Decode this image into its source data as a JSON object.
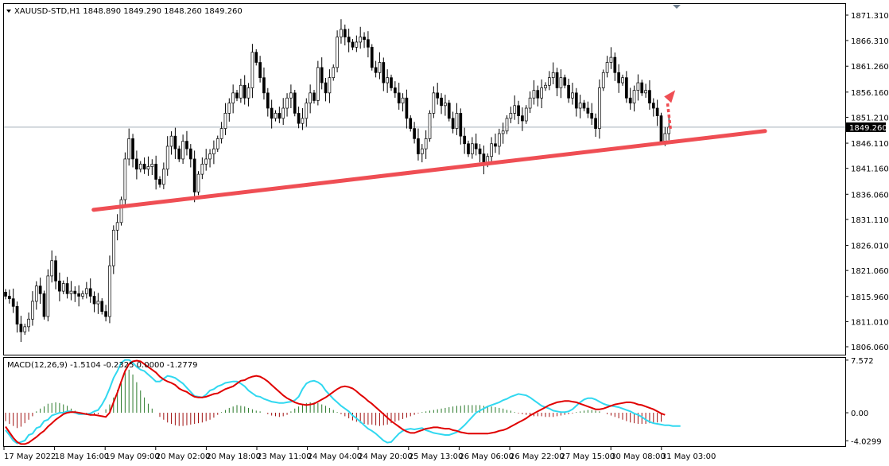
{
  "header": {
    "symbol_line": "XAUUSD-STD,H1  1848.890 1849.290 1848.260 1849.260",
    "macd_line": "MACD(12,26,9) -1.5104 -0.2325 0.0000 -1.2779"
  },
  "colors": {
    "bull": "#ffffff",
    "bear": "#000000",
    "wick": "#000000",
    "trendline": "#ef4e54",
    "arrow": "#ef4e54",
    "macd_main": "#e00000",
    "macd_signal": "#30d8f0",
    "hist_pos": "#2a7a2a",
    "hist_neg": "#a01010",
    "price_line": "#708090"
  },
  "current_price_label": "1849.260",
  "chart_data": {
    "type": "candlestick",
    "symbol": "XAUUSD-STD",
    "timeframe": "H1",
    "price_axis": {
      "range": [
        1804.5,
        1873.5
      ],
      "ticks": [
        "1871.310",
        "1866.310",
        "1861.260",
        "1856.160",
        "1851.210",
        "1846.110",
        "1841.160",
        "1836.060",
        "1831.110",
        "1826.010",
        "1821.060",
        "1815.960",
        "1811.010",
        "1806.060"
      ]
    },
    "current_price": 1849.26,
    "time_axis": {
      "labels": [
        "17 May 2022",
        "18 May 16:00",
        "19 May 09:00",
        "20 May 02:00",
        "20 May 18:00",
        "23 May 11:00",
        "24 May 04:00",
        "24 May 20:00",
        "25 May 13:00",
        "26 May 06:00",
        "26 May 22:00",
        "27 May 15:00",
        "30 May 08:00",
        "31 May 03:00"
      ]
    },
    "trendline": {
      "from": [
        22,
        1833.0
      ],
      "to": [
        166,
        1848.5
      ]
    },
    "arrow_target": [
      172,
      1855.6
    ],
    "closes": [
      1816.0,
      1815.5,
      1814.0,
      1810.5,
      1809.0,
      1810.0,
      1811.5,
      1815.0,
      1818.0,
      1816.5,
      1812.0,
      1820.0,
      1823.0,
      1819.0,
      1817.0,
      1818.5,
      1816.5,
      1817.0,
      1816.5,
      1816.0,
      1816.5,
      1817.5,
      1816.0,
      1814.5,
      1815.0,
      1813.0,
      1812.0,
      1822.0,
      1829.0,
      1830.5,
      1835.0,
      1843.0,
      1847.0,
      1843.0,
      1841.0,
      1842.0,
      1841.0,
      1841.5,
      1842.0,
      1839.0,
      1838.0,
      1841.0,
      1845.5,
      1847.5,
      1845.0,
      1843.0,
      1846.5,
      1845.0,
      1843.0,
      1836.5,
      1840.0,
      1842.0,
      1843.0,
      1844.0,
      1845.0,
      1847.0,
      1849.0,
      1852.0,
      1854.0,
      1856.0,
      1855.0,
      1857.5,
      1855.0,
      1857.0,
      1864.0,
      1862.0,
      1859.0,
      1856.0,
      1853.0,
      1851.0,
      1852.0,
      1851.0,
      1853.0,
      1855.0,
      1856.0,
      1852.0,
      1850.0,
      1851.0,
      1854.0,
      1856.0,
      1854.5,
      1861.0,
      1858.0,
      1856.0,
      1859.0,
      1861.0,
      1867.0,
      1868.5,
      1867.0,
      1866.0,
      1865.0,
      1866.0,
      1867.0,
      1866.5,
      1865.0,
      1861.0,
      1860.0,
      1862.0,
      1858.0,
      1859.0,
      1857.0,
      1856.0,
      1854.0,
      1855.0,
      1851.0,
      1849.0,
      1847.0,
      1844.0,
      1845.0,
      1847.0,
      1852.0,
      1856.0,
      1855.0,
      1853.5,
      1854.0,
      1851.0,
      1849.0,
      1852.0,
      1847.5,
      1846.0,
      1844.0,
      1846.0,
      1845.0,
      1844.0,
      1842.0,
      1843.5,
      1846.0,
      1845.5,
      1848.0,
      1848.5,
      1851.0,
      1852.0,
      1853.5,
      1851.5,
      1850.5,
      1853.0,
      1855.0,
      1856.5,
      1855.0,
      1857.0,
      1857.5,
      1859.0,
      1860.0,
      1857.0,
      1859.0,
      1857.5,
      1855.0,
      1856.0,
      1853.0,
      1854.0,
      1853.0,
      1852.0,
      1851.0,
      1849.0,
      1857.0,
      1860.0,
      1862.0,
      1863.0,
      1860.0,
      1858.0,
      1859.0,
      1855.0,
      1854.0,
      1856.5,
      1858.0,
      1856.0,
      1856.5,
      1854.0,
      1853.0,
      1851.5,
      1846.5,
      1848.0,
      1849.26
    ],
    "macd_axis": {
      "range": [
        -4.8,
        7.9
      ],
      "ticks": [
        "7.572",
        "0.00",
        "-4.0299"
      ]
    },
    "macd": {
      "main": [
        -2.0,
        -2.8,
        -3.6,
        -4.2,
        -4.5,
        -4.5,
        -4.3,
        -3.9,
        -3.5,
        -3.0,
        -2.6,
        -2.0,
        -1.5,
        -1.0,
        -0.6,
        -0.2,
        0.0,
        0.1,
        0.1,
        0.0,
        -0.1,
        -0.2,
        -0.3,
        -0.3,
        -0.4,
        -0.5,
        -0.6,
        0.0,
        1.5,
        2.9,
        4.5,
        6.0,
        7.0,
        7.4,
        7.5,
        7.4,
        7.0,
        6.6,
        6.2,
        5.8,
        5.2,
        4.8,
        4.5,
        4.3,
        4.0,
        3.5,
        3.2,
        3.0,
        2.6,
        2.3,
        2.2,
        2.2,
        2.3,
        2.5,
        2.7,
        2.8,
        3.1,
        3.4,
        3.6,
        3.8,
        4.2,
        4.6,
        4.7,
        5.0,
        5.2,
        5.3,
        5.2,
        4.9,
        4.5,
        4.0,
        3.5,
        3.0,
        2.5,
        2.1,
        1.8,
        1.5,
        1.3,
        1.2,
        1.1,
        1.2,
        1.3,
        1.6,
        1.9,
        2.2,
        2.6,
        3.0,
        3.4,
        3.7,
        3.8,
        3.7,
        3.5,
        3.1,
        2.6,
        2.2,
        1.7,
        1.3,
        0.8,
        0.3,
        -0.2,
        -0.7,
        -1.2,
        -1.6,
        -2.0,
        -2.4,
        -2.7,
        -2.9,
        -2.9,
        -2.7,
        -2.5,
        -2.3,
        -2.2,
        -2.1,
        -2.1,
        -2.2,
        -2.3,
        -2.3,
        -2.5,
        -2.6,
        -2.8,
        -2.9,
        -3.0,
        -3.0,
        -3.0,
        -3.0,
        -3.0,
        -3.0,
        -2.9,
        -2.8,
        -2.6,
        -2.5,
        -2.3,
        -2.0,
        -1.7,
        -1.4,
        -1.1,
        -0.8,
        -0.4,
        -0.1,
        0.2,
        0.5,
        0.8,
        1.1,
        1.3,
        1.5,
        1.6,
        1.7,
        1.7,
        1.6,
        1.5,
        1.3,
        1.1,
        0.9,
        0.7,
        0.5,
        0.5,
        0.6,
        0.8,
        1.0,
        1.2,
        1.3,
        1.4,
        1.5,
        1.5,
        1.4,
        1.2,
        1.1,
        0.9,
        0.7,
        0.5,
        0.2,
        -0.1,
        -0.3
      ],
      "signal": [
        -2.5,
        -3.2,
        -4.0,
        -4.4,
        -4.2,
        -4.0,
        -3.2,
        -3.0,
        -2.2,
        -2.0,
        -1.2,
        -1.0,
        -0.4,
        -0.2,
        0.0,
        0.0,
        0.2,
        0.2,
        0.0,
        -0.2,
        -0.2,
        -0.2,
        -0.1,
        0.2,
        0.4,
        1.2,
        2.2,
        3.5,
        5.0,
        6.0,
        7.2,
        7.6,
        7.6,
        7.2,
        6.6,
        6.2,
        6.0,
        5.5,
        5.0,
        4.5,
        4.5,
        4.9,
        5.3,
        5.2,
        5.0,
        4.6,
        4.2,
        3.6,
        3.0,
        2.4,
        2.3,
        2.2,
        2.6,
        3.2,
        3.4,
        3.8,
        4.0,
        4.3,
        4.4,
        4.5,
        4.5,
        4.2,
        3.8,
        3.2,
        2.8,
        2.4,
        2.3,
        2.0,
        1.8,
        1.6,
        1.5,
        1.4,
        1.4,
        1.5,
        1.6,
        1.8,
        2.3,
        3.4,
        4.2,
        4.5,
        4.6,
        4.4,
        4.0,
        3.2,
        2.6,
        2.0,
        1.5,
        1.0,
        0.6,
        0.2,
        -0.4,
        -0.8,
        -1.3,
        -1.8,
        -2.3,
        -2.6,
        -3.0,
        -3.5,
        -4.0,
        -4.3,
        -4.2,
        -3.6,
        -3.0,
        -2.6,
        -2.4,
        -2.3,
        -2.4,
        -2.3,
        -2.2,
        -2.5,
        -2.7,
        -2.9,
        -3.0,
        -3.1,
        -3.2,
        -3.2,
        -3.0,
        -2.8,
        -2.3,
        -1.8,
        -1.2,
        -0.6,
        0.0,
        0.3,
        0.6,
        0.9,
        1.1,
        1.3,
        1.5,
        1.8,
        2.0,
        2.3,
        2.5,
        2.7,
        2.6,
        2.5,
        2.2,
        1.8,
        1.4,
        1.0,
        0.8,
        0.6,
        0.3,
        0.2,
        0.1,
        0.1,
        0.2,
        0.5,
        1.0,
        1.5,
        1.9,
        2.1,
        2.1,
        1.9,
        1.6,
        1.3,
        1.1,
        1.0,
        0.9,
        0.8,
        0.6,
        0.4,
        0.2,
        -0.1,
        -0.3,
        -0.6,
        -1.0,
        -1.3,
        -1.5,
        -1.6,
        -1.7,
        -1.8,
        -1.8,
        -1.9,
        -1.9,
        -1.9
      ],
      "histogram": [
        -1.2,
        -1.6,
        -1.9,
        -2.2,
        -2.0,
        -1.5,
        -1.0,
        -0.5,
        0.2,
        0.6,
        0.9,
        1.3,
        1.4,
        1.5,
        1.4,
        1.2,
        1.0,
        0.6,
        0.3,
        0.0,
        -0.2,
        -0.3,
        -0.4,
        -0.3,
        -0.2,
        0.0,
        0.5,
        1.2,
        2.2,
        3.3,
        4.6,
        5.8,
        6.2,
        5.5,
        4.4,
        3.2,
        2.2,
        1.3,
        0.6,
        0.0,
        -0.6,
        -1.0,
        -1.4,
        -1.6,
        -1.8,
        -1.9,
        -1.9,
        -1.8,
        -1.7,
        -1.6,
        -1.5,
        -1.4,
        -1.2,
        -1.0,
        -0.7,
        -0.3,
        0.1,
        0.4,
        0.7,
        0.9,
        1.1,
        1.0,
        0.9,
        0.7,
        0.5,
        0.3,
        0.2,
        0.0,
        -0.2,
        -0.4,
        -0.5,
        -0.6,
        -0.5,
        -0.3,
        0.2,
        0.6,
        0.9,
        1.2,
        1.4,
        1.5,
        1.5,
        1.4,
        1.2,
        1.0,
        0.7,
        0.4,
        0.1,
        -0.2,
        -0.5,
        -0.8,
        -1.1,
        -1.3,
        -1.5,
        -1.6,
        -1.7,
        -1.7,
        -1.8,
        -1.9,
        -1.8,
        -1.7,
        -1.5,
        -1.3,
        -1.1,
        -0.9,
        -0.7,
        -0.5,
        -0.3,
        -0.1,
        0.1,
        0.2,
        0.3,
        0.4,
        0.5,
        0.6,
        0.7,
        0.8,
        0.9,
        1.0,
        1.0,
        1.1,
        1.1,
        1.1,
        1.1,
        1.1,
        1.0,
        1.0,
        0.9,
        0.8,
        0.7,
        0.6,
        0.4,
        0.3,
        0.1,
        -0.1,
        -0.2,
        -0.3,
        -0.4,
        -0.5,
        -0.5,
        -0.5,
        -0.6,
        -0.6,
        -0.6,
        -0.5,
        -0.4,
        -0.3,
        -0.2,
        -0.1,
        0.1,
        0.2,
        0.3,
        0.4,
        0.4,
        0.3,
        0.2,
        0.0,
        -0.2,
        -0.4,
        -0.6,
        -0.8,
        -1.0,
        -1.2,
        -1.4,
        -1.5,
        -1.6,
        -1.6,
        -1.6,
        -1.5,
        -1.5,
        -1.4,
        -1.3
      ]
    }
  }
}
